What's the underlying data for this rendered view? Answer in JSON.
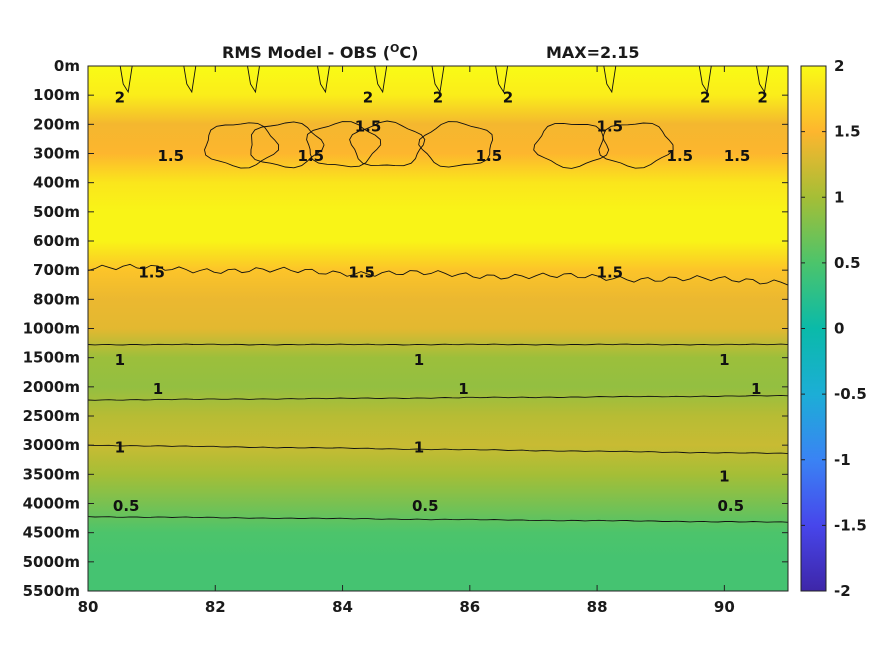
{
  "chart_data": {
    "type": "heatmap",
    "title": "RMS Model - OBS (",
    "title_superscript": "O",
    "title_unit": "C)",
    "max_label": "MAX=2.15",
    "x": {
      "ticks": [
        80,
        82,
        84,
        86,
        88,
        90
      ],
      "tick_labels": [
        "80",
        "82",
        "84",
        "86",
        "88",
        "90"
      ],
      "range": [
        80,
        91
      ]
    },
    "y": {
      "tick_labels": [
        "0m",
        "100m",
        "200m",
        "300m",
        "400m",
        "500m",
        "600m",
        "700m",
        "800m",
        "1000m",
        "1500m",
        "2000m",
        "2500m",
        "3000m",
        "3500m",
        "4000m",
        "4500m",
        "5000m",
        "5500m"
      ]
    },
    "colorbar": {
      "range": [
        -2,
        2
      ],
      "ticks": [
        2,
        1.5,
        1,
        0.5,
        0,
        -0.5,
        -1,
        -1.5,
        -2
      ],
      "tick_labels": [
        "2",
        "1.5",
        "1",
        "0.5",
        "0",
        "-0.5",
        "-1",
        "-1.5",
        "-2"
      ]
    },
    "depth_profile": {
      "depths": [
        "0m",
        "100m",
        "200m",
        "300m",
        "400m",
        "500m",
        "600m",
        "700m",
        "800m",
        "1000m",
        "1500m",
        "2000m",
        "2500m",
        "3000m",
        "3500m",
        "4000m",
        "4500m",
        "5000m",
        "5500m"
      ],
      "rms": [
        2.0,
        1.9,
        1.45,
        1.5,
        1.85,
        1.95,
        1.95,
        1.6,
        1.4,
        1.35,
        0.95,
        0.9,
        1.1,
        1.2,
        1.0,
        0.75,
        0.5,
        0.45,
        0.45
      ]
    },
    "contour_levels": [
      0.5,
      1,
      1.5,
      2
    ],
    "contour_labels": [
      {
        "text": "2",
        "x": 80.5,
        "depth": "100m"
      },
      {
        "text": "2",
        "x": 84.4,
        "depth": "100m"
      },
      {
        "text": "2",
        "x": 85.5,
        "depth": "100m"
      },
      {
        "text": "2",
        "x": 86.6,
        "depth": "100m"
      },
      {
        "text": "2",
        "x": 89.7,
        "depth": "100m"
      },
      {
        "text": "2",
        "x": 90.6,
        "depth": "100m"
      },
      {
        "text": "1.5",
        "x": 81.3,
        "depth": "300m"
      },
      {
        "text": "1.5",
        "x": 83.5,
        "depth": "300m"
      },
      {
        "text": "1.5",
        "x": 84.4,
        "depth": "200m"
      },
      {
        "text": "1.5",
        "x": 86.3,
        "depth": "300m"
      },
      {
        "text": "1.5",
        "x": 88.2,
        "depth": "200m"
      },
      {
        "text": "1.5",
        "x": 89.3,
        "depth": "300m"
      },
      {
        "text": "1.5",
        "x": 90.2,
        "depth": "300m"
      },
      {
        "text": "1.5",
        "x": 81.0,
        "depth": "700m"
      },
      {
        "text": "1.5",
        "x": 84.3,
        "depth": "700m"
      },
      {
        "text": "1.5",
        "x": 88.2,
        "depth": "700m"
      },
      {
        "text": "1",
        "x": 80.5,
        "depth": "1500m"
      },
      {
        "text": "1",
        "x": 85.2,
        "depth": "1500m"
      },
      {
        "text": "1",
        "x": 90.0,
        "depth": "1500m"
      },
      {
        "text": "1",
        "x": 81.1,
        "depth": "2000m"
      },
      {
        "text": "1",
        "x": 85.9,
        "depth": "2000m"
      },
      {
        "text": "1",
        "x": 90.5,
        "depth": "2000m"
      },
      {
        "text": "1",
        "x": 80.5,
        "depth": "3000m"
      },
      {
        "text": "1",
        "x": 85.2,
        "depth": "3000m"
      },
      {
        "text": "1",
        "x": 90.0,
        "depth": "3500m"
      },
      {
        "text": "0.5",
        "x": 80.6,
        "depth": "4000m"
      },
      {
        "text": "0.5",
        "x": 85.3,
        "depth": "4000m"
      },
      {
        "text": "0.5",
        "x": 90.1,
        "depth": "4000m"
      }
    ]
  }
}
